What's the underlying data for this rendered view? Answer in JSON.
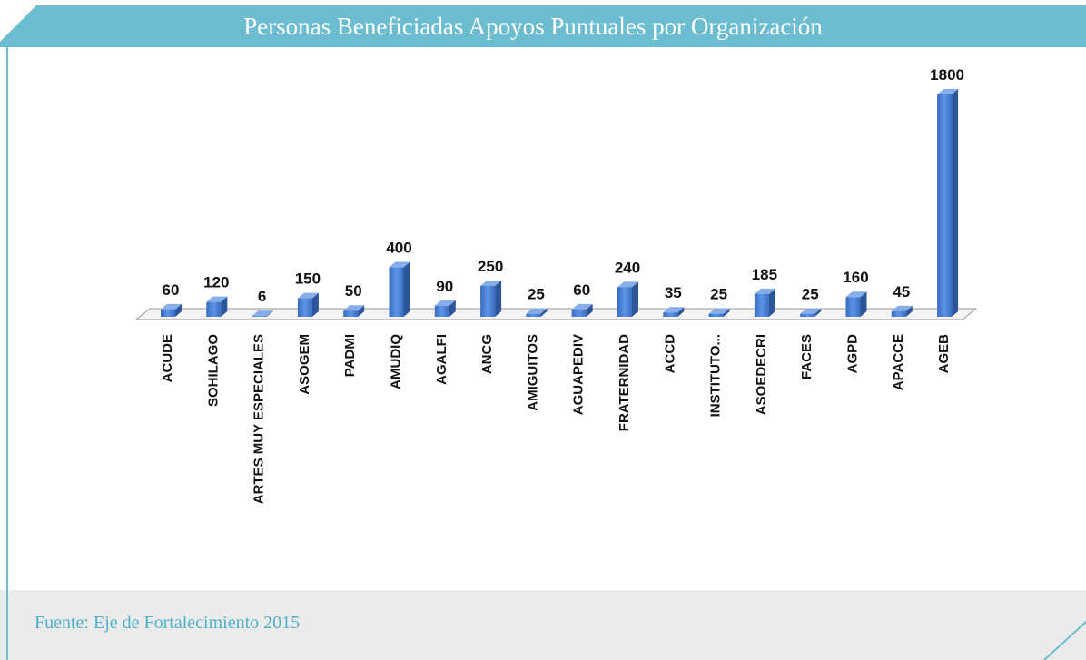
{
  "chart_data": {
    "type": "bar3d",
    "title": "Personas Beneficiadas Apoyos Puntuales por Organización",
    "caption": "Fuente: Eje de Fortalecimiento 2015",
    "categories": [
      "ACUDE",
      "SOHILAGO",
      "ARTES MUY ESPECIALES",
      "ASOGEM",
      "PADMI",
      "AMUDIQ",
      "AGALFI",
      "ANCG",
      "AMIGUITOS",
      "AGUAPEDIV",
      "FRATERNIDAD",
      "ACCD",
      "INSTITUTO...",
      "ASOEDECRI",
      "FACES",
      "AGPD",
      "APACCE",
      "AGEB"
    ],
    "values": [
      60,
      120,
      6,
      150,
      50,
      400,
      90,
      250,
      25,
      60,
      240,
      35,
      25,
      185,
      25,
      160,
      45,
      1800
    ],
    "color": "#4a7fcf"
  }
}
